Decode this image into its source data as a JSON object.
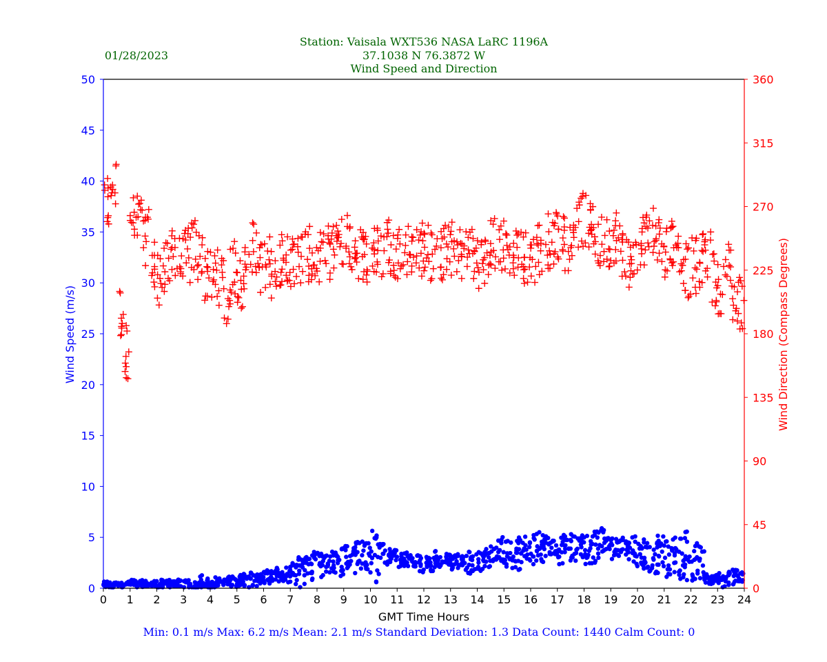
{
  "header": {
    "date": "01/28/2023",
    "station": "Station:  Vaisala WXT536  NASA LaRC 1196A",
    "coords": "37.1038 N 76.3872 W",
    "subtitle": "Wind Speed and Direction"
  },
  "footer": {
    "stats": "Min: 0.1 m/s   Max: 6.2 m/s   Mean: 2.1 m/s  Standard Deviation: 1.3  Data Count: 1440  Calm Count:  0"
  },
  "colors": {
    "speed": "#0000ff",
    "direction": "#ff0000",
    "title": "#006400",
    "axis": "#000000"
  },
  "chart_data": {
    "type": "scatter",
    "title": "Wind Speed and Direction",
    "xlabel": "GMT Time Hours",
    "ylabel_left": "Wind Speed (m/s)",
    "ylabel_right": "Wind Direction (Compass Degrees)",
    "xlim": [
      0,
      24
    ],
    "ylim_left": [
      0,
      50
    ],
    "ylim_right": [
      0,
      360
    ],
    "x_ticks": [
      "0",
      "1",
      "2",
      "3",
      "4",
      "5",
      "6",
      "7",
      "8",
      "9",
      "10",
      "11",
      "12",
      "13",
      "14",
      "15",
      "16",
      "17",
      "18",
      "19",
      "20",
      "21",
      "22",
      "23",
      "24"
    ],
    "y_left_ticks": [
      "0",
      "5",
      "10",
      "15",
      "20",
      "25",
      "30",
      "35",
      "40",
      "45",
      "50"
    ],
    "y_right_ticks": [
      "0",
      "45",
      "90",
      "135",
      "180",
      "225",
      "270",
      "315",
      "360"
    ],
    "sample_step_hours": 0.25,
    "speed_marker": "dot",
    "direction_marker": "plus",
    "speed_values": [
      0.4,
      0.3,
      0.3,
      0.5,
      0.5,
      0.4,
      0.5,
      0.5,
      0.4,
      0.5,
      0.5,
      0.5,
      0.4,
      0.3,
      0.4,
      0.2,
      0.3,
      0.6,
      0.7,
      0.6,
      0.6,
      0.7,
      0.8,
      0.8,
      1.0,
      1.2,
      1.1,
      1.2,
      1.3,
      1.4,
      1.6,
      2.0,
      2.3,
      2.4,
      2.5,
      2.5,
      2.7,
      2.8,
      3.0,
      3.1,
      2.8,
      2.9,
      3.0,
      3.0,
      2.6,
      2.8,
      2.7,
      2.4,
      2.5,
      2.4,
      2.5,
      2.6,
      2.4,
      2.6,
      2.4,
      2.4,
      2.5,
      2.6,
      3.3,
      3.6,
      3.2,
      3.0,
      3.1,
      3.5,
      3.6,
      3.8,
      3.9,
      4.0,
      3.4,
      3.7,
      3.9,
      3.8,
      3.6,
      3.8,
      4.2,
      4.4,
      3.8,
      3.7,
      3.6,
      3.4,
      3.2,
      2.9,
      2.8,
      2.9,
      2.6,
      2.9,
      2.7,
      2.8,
      2.3,
      2.4,
      0.9,
      0.8,
      0.7,
      0.9,
      1.1,
      1.0,
      1.1
    ],
    "speed_max_values": [
      0.8,
      0.7,
      0.6,
      0.7,
      0.9,
      0.8,
      0.9,
      0.8,
      0.9,
      1.0,
      0.9,
      1.0,
      0.9,
      1.0,
      1.3,
      1.0,
      1.1,
      1.0,
      1.2,
      1.2,
      1.4,
      1.6,
      1.7,
      1.6,
      1.8,
      2.0,
      1.9,
      2.1,
      2.6,
      3.2,
      3.4,
      3.8,
      3.9,
      3.6,
      3.8,
      4.4,
      4.4,
      4.5,
      5.0,
      4.7,
      5.7,
      4.8,
      4.0,
      3.9,
      3.5,
      3.6,
      3.5,
      3.5,
      3.3,
      3.7,
      3.3,
      3.6,
      3.6,
      3.4,
      3.6,
      3.4,
      3.7,
      3.9,
      4.2,
      5.1,
      4.7,
      4.9,
      5.0,
      5.1,
      5.4,
      5.5,
      5.3,
      5.0,
      5.5,
      5.2,
      5.4,
      5.2,
      5.3,
      5.7,
      6.2,
      5.3,
      5.2,
      5.0,
      5.0,
      5.1,
      5.0,
      4.5,
      4.6,
      5.2,
      4.8,
      5.0,
      5.0,
      5.6,
      4.5,
      4.2,
      1.5,
      1.3,
      1.5,
      1.8,
      2.0,
      1.6,
      1.3
    ],
    "direction_values": [
      270,
      285,
      195,
      168,
      258,
      260,
      248,
      228,
      220,
      225,
      240,
      230,
      235,
      242,
      235,
      222,
      218,
      220,
      205,
      226,
      215,
      230,
      240,
      228,
      230,
      225,
      233,
      237,
      228,
      235,
      236,
      232,
      232,
      238,
      240,
      247,
      245,
      242,
      238,
      235,
      237,
      238,
      245,
      240,
      238,
      240,
      242,
      240,
      240,
      236,
      236,
      238,
      240,
      237,
      238,
      236,
      232,
      232,
      243,
      242,
      241,
      238,
      236,
      233,
      236,
      240,
      246,
      248,
      252,
      244,
      254,
      260,
      258,
      252,
      244,
      245,
      250,
      240,
      232,
      232,
      246,
      248,
      252,
      248,
      240,
      246,
      234,
      225,
      228,
      232,
      235,
      218,
      214,
      226,
      205,
      202,
      198
    ]
  }
}
